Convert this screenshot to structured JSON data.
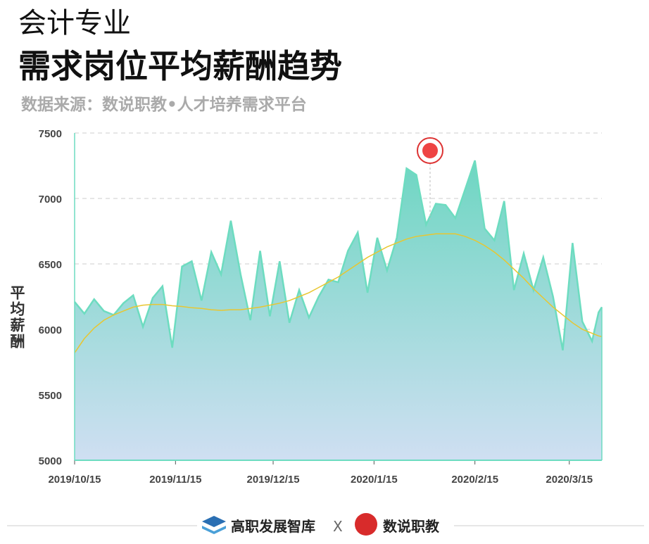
{
  "chart_data": {
    "type": "area",
    "title_top": "会计专业",
    "title": "需求岗位平均薪酬趋势",
    "subtitle": "数据来源：数说职教•人才培养需求平台",
    "ylabel": "平均薪酬",
    "footer": {
      "left": "高职发展智库",
      "sep": "X",
      "right": "数说职教"
    },
    "x": [
      "2019/10/15",
      "2019/10/18",
      "2019/10/21",
      "2019/10/24",
      "2019/10/27",
      "2019/10/30",
      "2019/11/2",
      "2019/11/5",
      "2019/11/8",
      "2019/11/11",
      "2019/11/14",
      "2019/11/17",
      "2019/11/20",
      "2019/11/23",
      "2019/11/26",
      "2019/11/29",
      "2019/12/2",
      "2019/12/5",
      "2019/12/8",
      "2019/12/11",
      "2019/12/14",
      "2019/12/17",
      "2019/12/20",
      "2019/12/23",
      "2019/12/26",
      "2019/12/29",
      "2020/1/1",
      "2020/1/4",
      "2020/1/7",
      "2020/1/10",
      "2020/1/13",
      "2020/1/16",
      "2020/1/19",
      "2020/1/22",
      "2020/1/25",
      "2020/1/28",
      "2020/1/31",
      "2020/2/3",
      "2020/2/6",
      "2020/2/9",
      "2020/2/12",
      "2020/2/15",
      "2020/2/18",
      "2020/2/21",
      "2020/2/24",
      "2020/2/27",
      "2020/3/1",
      "2020/3/4",
      "2020/3/7",
      "2020/3/10",
      "2020/3/13",
      "2020/3/16",
      "2020/3/19",
      "2020/3/22",
      "2020/3/24",
      "2020/3/25"
    ],
    "series": [
      {
        "name": "平均薪酬",
        "color": "#6ddcc0",
        "values": [
          6210,
          6120,
          6230,
          6140,
          6110,
          6200,
          6260,
          6020,
          6240,
          6330,
          5860,
          6480,
          6520,
          6220,
          6590,
          6420,
          6830,
          6420,
          6070,
          6600,
          6100,
          6520,
          6050,
          6300,
          6090,
          6250,
          6380,
          6360,
          6600,
          6740,
          6280,
          6700,
          6450,
          6700,
          7230,
          7180,
          6800,
          6960,
          6950,
          6850,
          7070,
          7290,
          6770,
          6680,
          6980,
          6300,
          6580,
          6300,
          6550,
          6250,
          5840,
          6660,
          6060,
          5910,
          6130,
          6170
        ]
      },
      {
        "name": "趋势",
        "color": "#e8c630",
        "values": [
          5820,
          5930,
          6010,
          6070,
          6110,
          6140,
          6170,
          6185,
          6190,
          6190,
          6180,
          6175,
          6165,
          6160,
          6150,
          6145,
          6150,
          6150,
          6160,
          6170,
          6185,
          6200,
          6220,
          6250,
          6280,
          6320,
          6360,
          6400,
          6450,
          6500,
          6550,
          6590,
          6630,
          6660,
          6690,
          6710,
          6720,
          6730,
          6730,
          6730,
          6710,
          6680,
          6640,
          6590,
          6530,
          6460,
          6390,
          6310,
          6240,
          6170,
          6110,
          6050,
          6000,
          5970,
          5950,
          5945
        ]
      }
    ],
    "xlim": [
      "2019/10/15",
      "2020/3/25"
    ],
    "xticks": [
      "2019/10/15",
      "2019/11/15",
      "2019/12/15",
      "2020/1/15",
      "2020/2/15",
      "2020/3/15"
    ],
    "ylim": [
      5000,
      7500
    ],
    "yticks": [
      5000,
      5500,
      6000,
      6500,
      7000,
      7500
    ],
    "grid": true
  }
}
